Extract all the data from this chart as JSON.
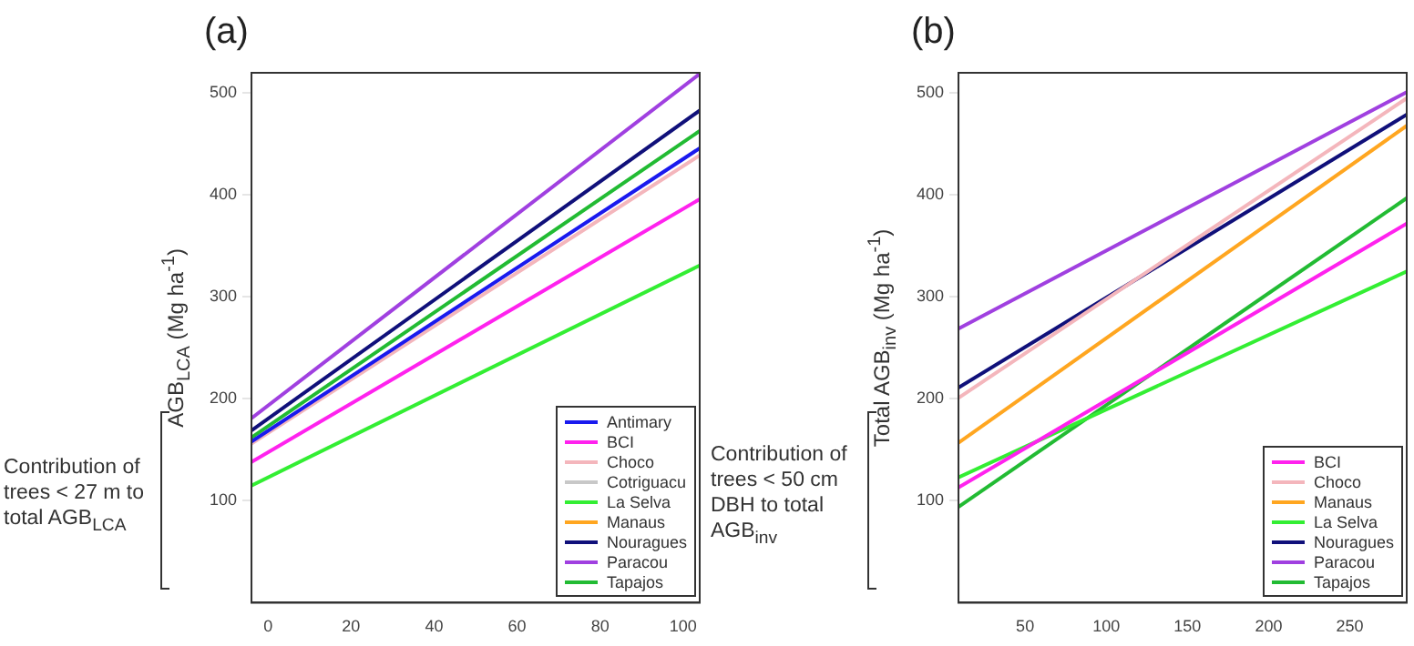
{
  "chart_data": [
    {
      "type": "line",
      "title": "(a)",
      "ylabel": "AGB$_{LCA}$ (Mg ha$^{-1}$)",
      "x": [
        -4,
        104
      ],
      "xlim": [
        -4,
        104
      ],
      "xticks": [
        0,
        20,
        40,
        60,
        80,
        100
      ],
      "ylim": [
        0,
        520
      ],
      "yticks": [
        100,
        200,
        300,
        400,
        500
      ],
      "grid": false,
      "legend": "bottom right",
      "marker": "none",
      "line_style": "solid",
      "annotations": [
        "Contribution of trees < 27 m to total AGB$_{LCA}$"
      ],
      "series": [
        {
          "name": "Antimary",
          "color": "#1a1aee",
          "values": [
            158,
            446
          ]
        },
        {
          "name": "BCI",
          "color": "#ff22ee",
          "values": [
            138,
            396
          ]
        },
        {
          "name": "Choco",
          "color": "#f4b6bc",
          "values": [
            156,
            439
          ]
        },
        {
          "name": "Cotriguacu",
          "color": "#c8c8c8",
          "values": [
            null,
            null
          ]
        },
        {
          "name": "La Selva",
          "color": "#33ee33",
          "values": [
            115,
            331
          ]
        },
        {
          "name": "Manaus",
          "color": "#ffa620",
          "values": [
            null,
            null
          ]
        },
        {
          "name": "Nouragues",
          "color": "#10107a",
          "values": [
            169,
            483
          ]
        },
        {
          "name": "Paracou",
          "color": "#a040e0",
          "values": [
            181,
            519
          ]
        },
        {
          "name": "Tapajos",
          "color": "#22bb33",
          "values": [
            162,
            463
          ]
        }
      ]
    },
    {
      "type": "line",
      "title": "(b)",
      "ylabel": "Total AGB$_{inv}$ (Mg ha$^{-1}$)",
      "x": [
        9,
        285
      ],
      "xlim": [
        9,
        285
      ],
      "xticks": [
        50,
        100,
        150,
        200,
        250
      ],
      "ylim": [
        0,
        520
      ],
      "yticks": [
        100,
        200,
        300,
        400,
        500
      ],
      "grid": false,
      "legend": "bottom right",
      "marker": "none",
      "line_style": "solid",
      "annotations": [
        "Contribution of trees < 50 cm DBH to total AGB$_{inv}$"
      ],
      "series": [
        {
          "name": "BCI",
          "color": "#ff22ee",
          "values": [
            113,
            372
          ]
        },
        {
          "name": "Choco",
          "color": "#f4b6bc",
          "values": [
            201,
            495
          ]
        },
        {
          "name": "Manaus",
          "color": "#ffa620",
          "values": [
            157,
            468
          ]
        },
        {
          "name": "La Selva",
          "color": "#33ee33",
          "values": [
            123,
            325
          ]
        },
        {
          "name": "Nouragues",
          "color": "#10107a",
          "values": [
            211,
            479
          ]
        },
        {
          "name": "Paracou",
          "color": "#a040e0",
          "values": [
            269,
            501
          ]
        },
        {
          "name": "Tapajos",
          "color": "#22bb33",
          "values": [
            94,
            397
          ]
        }
      ]
    }
  ]
}
